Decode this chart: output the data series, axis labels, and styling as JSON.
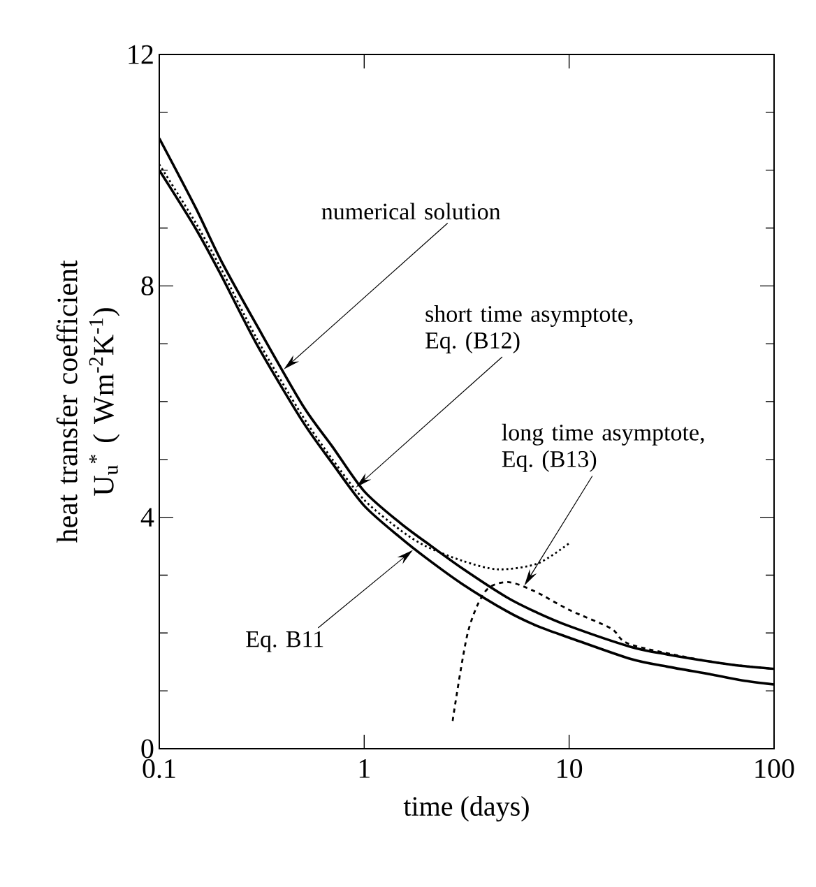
{
  "chart_data": {
    "type": "line",
    "xlabel": "time (days)",
    "ylabel": "heat transfer coefficient U$_{u}$$^{*}$ ( Wm$^{-2}$K$^{-1}$)",
    "log": "x",
    "xlim": [
      0.1,
      100
    ],
    "ylim": [
      0,
      12
    ],
    "xticks": [
      0.1,
      1,
      10,
      100
    ],
    "yticks": [
      0,
      4,
      8,
      12
    ],
    "grid": false,
    "series": [
      {
        "color": "#000000",
        "line_style": "solid",
        "x": [
          0.1,
          0.15,
          0.2,
          0.3,
          0.5,
          0.7,
          1,
          1.5,
          2,
          3,
          5,
          7,
          10,
          20,
          30,
          50,
          70,
          100
        ],
        "values": [
          10.55,
          9.36,
          8.44,
          7.31,
          5.94,
          5.22,
          4.45,
          3.9,
          3.57,
          3.12,
          2.61,
          2.35,
          2.12,
          1.76,
          1.63,
          1.5,
          1.43,
          1.38
        ]
      },
      {
        "color": "#000000",
        "line_style": "solid",
        "x": [
          0.1,
          0.15,
          0.2,
          0.3,
          0.5,
          0.7,
          1,
          1.5,
          2,
          3,
          5,
          7,
          10,
          20,
          30,
          50,
          70,
          100
        ],
        "values": [
          10.0,
          9.0,
          8.19,
          6.98,
          5.66,
          4.93,
          4.2,
          3.65,
          3.3,
          2.85,
          2.37,
          2.12,
          1.92,
          1.55,
          1.42,
          1.28,
          1.18,
          1.11
        ]
      },
      {
        "color": "#000000",
        "line_style": "dotted",
        "x": [
          0.1,
          0.15,
          0.2,
          0.3,
          0.5,
          0.7,
          1,
          1.5,
          2,
          3,
          4.5,
          7,
          10
        ],
        "values": [
          10.1,
          9.1,
          8.3,
          7.08,
          5.75,
          5.0,
          4.3,
          3.78,
          3.5,
          3.25,
          3.1,
          3.2,
          3.55
        ]
      },
      {
        "color": "#000000",
        "line_style": "dashed",
        "x": [
          2.7,
          3.2,
          3.9,
          5,
          6.8,
          10,
          16,
          20,
          50,
          100
        ],
        "values": [
          0.48,
          2.0,
          2.72,
          2.88,
          2.72,
          2.4,
          2.08,
          1.8,
          1.5,
          1.38
        ]
      }
    ],
    "annotations": [
      {
        "text": "numerical solution",
        "x": 0.4,
        "y": 6.54
      },
      {
        "text": "short time asymptote, Eq. (B12)",
        "x": 0.9,
        "y": 4.5
      },
      {
        "text": "long time asymptote, Eq. (B13)",
        "x": 6,
        "y": 2.8
      },
      {
        "text": "Eq. B11",
        "x": 1.75,
        "y": 3.45
      }
    ]
  }
}
